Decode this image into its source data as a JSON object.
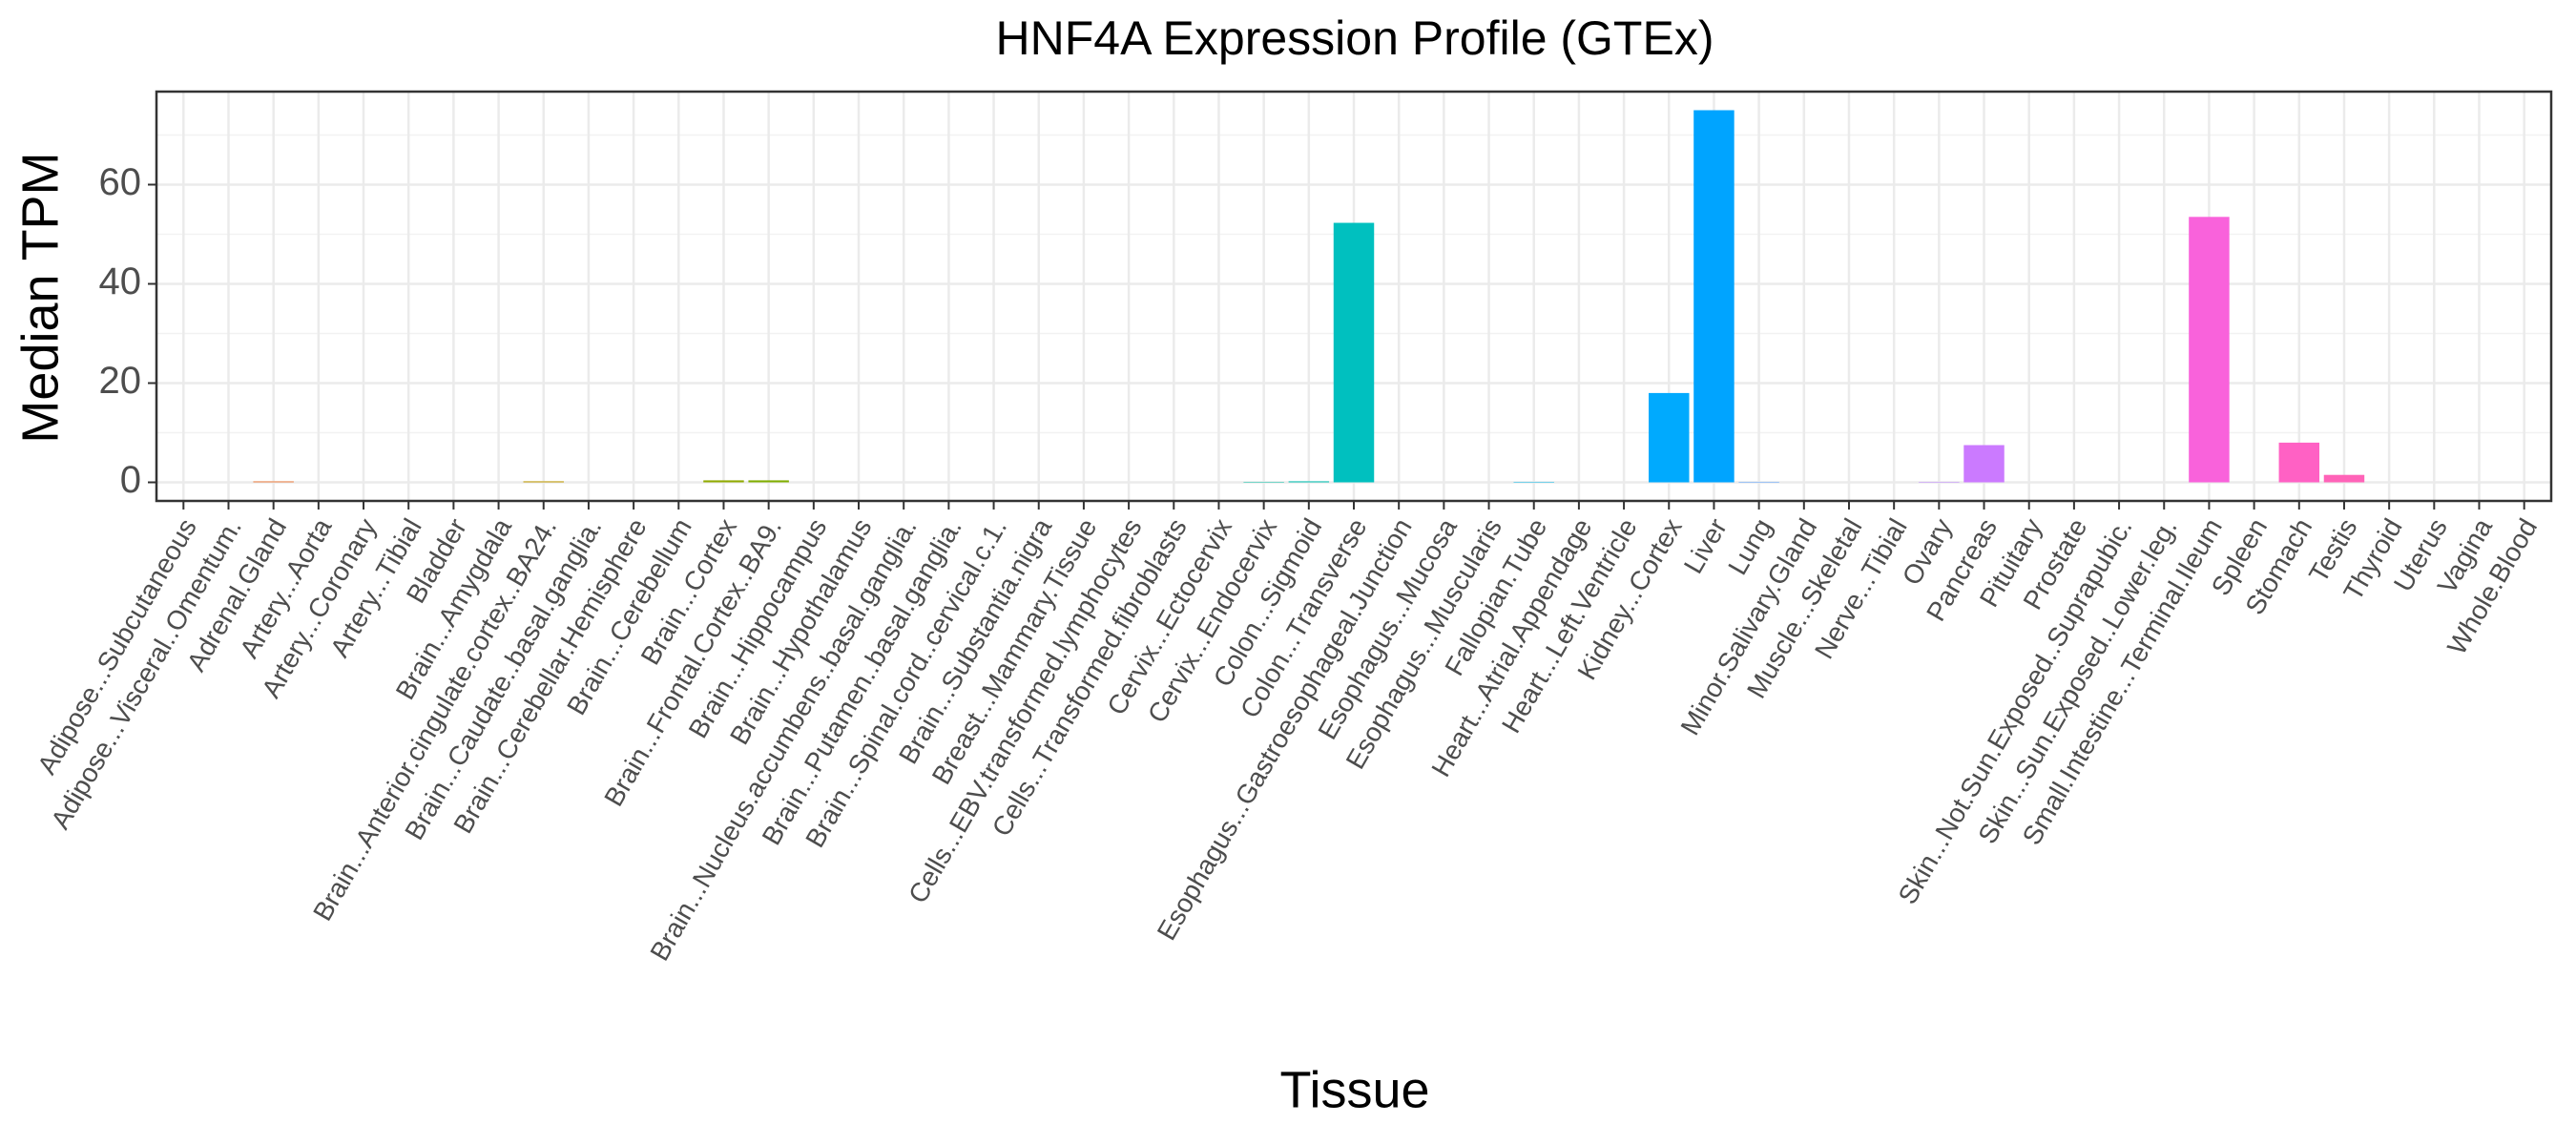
{
  "chart_data": {
    "type": "bar",
    "title": "HNF4A Expression Profile (GTEx)",
    "x_label": "Tissue",
    "y_label": "Median TPM",
    "categories": [
      "Adipose...Subcutaneous",
      "Adipose...Visceral..Omentum.",
      "Adrenal.Gland",
      "Artery...Aorta",
      "Artery...Coronary",
      "Artery...Tibial",
      "Bladder",
      "Brain...Amygdala",
      "Brain...Anterior.cingulate.cortex..BA24.",
      "Brain...Caudate..basal.ganglia.",
      "Brain...Cerebellar.Hemisphere",
      "Brain...Cerebellum",
      "Brain...Cortex",
      "Brain...Frontal.Cortex..BA9.",
      "Brain...Hippocampus",
      "Brain...Hypothalamus",
      "Brain...Nucleus.accumbens..basal.ganglia.",
      "Brain...Putamen..basal.ganglia.",
      "Brain...Spinal.cord..cervical.c.1.",
      "Brain...Substantia.nigra",
      "Breast...Mammary.Tissue",
      "Cells...EBV.transformed.lymphocytes",
      "Cells...Transformed.fibroblasts",
      "Cervix...Ectocervix",
      "Cervix...Endocervix",
      "Colon...Sigmoid",
      "Colon...Transverse",
      "Esophagus...Gastroesophageal.Junction",
      "Esophagus...Mucosa",
      "Esophagus...Muscularis",
      "Fallopian.Tube",
      "Heart...Atrial.Appendage",
      "Heart...Left.Ventricle",
      "Kidney...Cortex",
      "Liver",
      "Lung",
      "Minor.Salivary.Gland",
      "Muscle...Skeletal",
      "Nerve...Tibial",
      "Ovary",
      "Pancreas",
      "Pituitary",
      "Prostate",
      "Skin...Not.Sun.Exposed..Suprapubic.",
      "Skin...Sun.Exposed..Lower.leg.",
      "Small.Intestine...Terminal.Ileum",
      "Spleen",
      "Stomach",
      "Testis",
      "Thyroid",
      "Uterus",
      "Vagina",
      "Whole.Blood"
    ],
    "values": [
      0,
      0,
      0.2,
      0,
      0,
      0,
      0,
      0,
      0.2,
      0,
      0,
      0,
      0.4,
      0.4,
      0,
      0,
      0,
      0,
      0,
      0,
      0,
      0,
      0,
      0,
      0.1,
      0.2,
      52.3,
      0,
      0,
      0,
      0.1,
      0,
      0,
      18,
      75,
      0.1,
      0,
      0,
      0,
      0.1,
      7.5,
      0,
      0,
      0,
      0,
      53.5,
      0,
      8,
      1.5,
      0,
      0,
      0,
      0
    ],
    "palette": {
      "model": "hcl",
      "hue_range": [
        15,
        375
      ],
      "chroma": 100,
      "luminance": 65
    },
    "ylim": [
      -3.75,
      78.75
    ],
    "yticks": [
      0,
      20,
      40,
      60
    ],
    "minor_yticks": [
      10,
      30,
      50,
      70
    ],
    "grid": true
  }
}
